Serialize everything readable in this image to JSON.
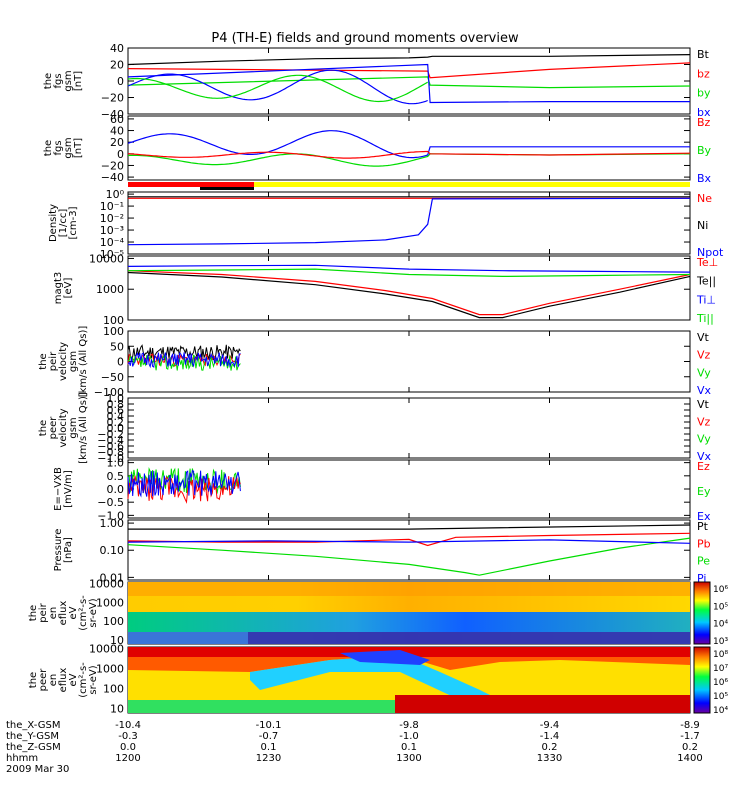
{
  "title": "P4 (TH-E) fields and ground moments overview",
  "time_axis": {
    "rows": [
      {
        "label": "the_X-GSM",
        "values": [
          "-10.4",
          "-10.1",
          "-9.8",
          "-9.4",
          "-8.9"
        ]
      },
      {
        "label": "the_Y-GSM",
        "values": [
          "-0.3",
          "-0.7",
          "-1.0",
          "-1.4",
          "-1.7"
        ]
      },
      {
        "label": "the_Z-GSM",
        "values": [
          "0.0",
          "0.1",
          "0.1",
          "0.2",
          "0.2"
        ]
      },
      {
        "label": "hhmm",
        "values": [
          "1200",
          "1230",
          "1300",
          "1330",
          "1400"
        ]
      }
    ],
    "date": "2009 Mar 30"
  },
  "colors": {
    "black": "#000000",
    "red": "#ff0000",
    "green": "#00dd00",
    "blue": "#0000ff",
    "yellow": "#ffff00"
  },
  "chart_data": [
    {
      "type": "line",
      "id": "fgs_gsm",
      "ylabel_lines": [
        "the",
        "fgs",
        "gsm",
        "[nT]"
      ],
      "ylim": [
        -40,
        40
      ],
      "yticks": [
        -40,
        -20,
        0,
        20,
        40
      ],
      "ytick_labels": [
        "−40",
        "−20",
        "0",
        "20",
        "40"
      ],
      "xlim": [
        0,
        120
      ],
      "series": [
        {
          "name": "Bt",
          "color": "#000000"
        },
        {
          "name": "bz",
          "color": "#ff0000"
        },
        {
          "name": "by",
          "color": "#00dd00"
        },
        {
          "name": "bx",
          "color": "#0000ff"
        }
      ],
      "data": {
        "Bt": {
          "x": [
            0,
            20,
            40,
            60,
            64,
            65,
            90,
            120
          ],
          "y": [
            20,
            24,
            27,
            28,
            29,
            30,
            30,
            32
          ]
        },
        "bz": {
          "x": [
            0,
            64,
            64.5,
            90,
            120
          ],
          "y": [
            15,
            12,
            4,
            14,
            22
          ]
        },
        "by": {
          "x": [
            0,
            64,
            64.5,
            90,
            120
          ],
          "y": [
            -5,
            5,
            -5,
            -8,
            -6
          ]
        },
        "bx": {
          "x": [
            0,
            64,
            64.5,
            90,
            120
          ],
          "y": [
            5,
            20,
            -26,
            -25,
            -25
          ]
        }
      }
    },
    {
      "type": "line",
      "id": "fgs_gsm_dsp",
      "ylabel_lines": [
        "the",
        "fgs",
        "gsm",
        "[nT]"
      ],
      "ylim": [
        -45,
        65
      ],
      "yticks": [
        -40,
        -20,
        0,
        20,
        40,
        60
      ],
      "ytick_labels": [
        "−40",
        "−20",
        "0",
        "20",
        "40",
        "60"
      ],
      "xlim": [
        0,
        120
      ],
      "series": [
        {
          "name": "Bz",
          "color": "#ff0000"
        },
        {
          "name": "By",
          "color": "#00dd00"
        },
        {
          "name": "Bx",
          "color": "#0000ff"
        }
      ]
    },
    {
      "type": "line",
      "id": "density",
      "log": true,
      "ylabel_lines": [
        "Density",
        "[1/cc]",
        "[cm-3]"
      ],
      "ylim": [
        1e-05,
        1.5
      ],
      "yticks": [
        1,
        0.1,
        0.01,
        0.001,
        0.0001,
        1e-05
      ],
      "ytick_labels": [
        "10⁰",
        "10⁻¹",
        "10⁻²",
        "10⁻³",
        "10⁻⁴",
        "10⁻⁵"
      ],
      "xlim": [
        0,
        120
      ],
      "series": [
        {
          "name": "Ne",
          "color": "#ff0000"
        },
        {
          "name": "Ni",
          "color": "#000000"
        },
        {
          "name": "Npot",
          "color": "#0000ff"
        }
      ],
      "data": {
        "Ne": {
          "x": [
            0,
            120
          ],
          "y": [
            0.45,
            0.45
          ]
        },
        "Ni": {
          "x": [
            0,
            120
          ],
          "y": [
            0.6,
            0.6
          ]
        },
        "Npot": {
          "x": [
            0,
            20,
            40,
            55,
            62,
            64,
            65,
            120
          ],
          "y": [
            6e-05,
            7e-05,
            9e-05,
            0.00015,
            0.0004,
            0.003,
            0.4,
            0.45
          ]
        }
      }
    },
    {
      "type": "line",
      "id": "temperature",
      "log": true,
      "ylabel_lines": [
        "magt3",
        "[eV]"
      ],
      "ylim": [
        100,
        12000
      ],
      "yticks": [
        10000,
        1000,
        100
      ],
      "ytick_labels": [
        "10000",
        "1000",
        "100"
      ],
      "xlim": [
        0,
        120
      ],
      "series": [
        {
          "name": "Te⊥",
          "color": "#ff0000"
        },
        {
          "name": "Te||",
          "color": "#000000"
        },
        {
          "name": "Ti⊥",
          "color": "#0000ff"
        },
        {
          "name": "Ti||",
          "color": "#00dd00"
        }
      ],
      "data": {
        "Te⊥": {
          "x": [
            0,
            20,
            40,
            55,
            65,
            75,
            80,
            90,
            105,
            120
          ],
          "y": [
            4000,
            3000,
            1800,
            900,
            500,
            150,
            150,
            350,
            1000,
            3000
          ]
        },
        "Te||": {
          "x": [
            0,
            20,
            40,
            55,
            65,
            75,
            80,
            90,
            105,
            120
          ],
          "y": [
            3500,
            2500,
            1400,
            700,
            400,
            120,
            120,
            280,
            800,
            2600
          ]
        },
        "Ti⊥": {
          "x": [
            0,
            20,
            40,
            60,
            80,
            100,
            120
          ],
          "y": [
            5500,
            5800,
            6000,
            4500,
            4000,
            3800,
            3600
          ]
        },
        "Ti||": {
          "x": [
            0,
            20,
            40,
            60,
            80,
            100,
            120
          ],
          "y": [
            4000,
            4200,
            4500,
            3000,
            2600,
            2800,
            3000
          ]
        }
      }
    },
    {
      "type": "line",
      "id": "peir_velocity",
      "ylabel_lines": [
        "the",
        "peir",
        "velocity",
        "gsm",
        "[km/s (All Qs)]"
      ],
      "ylim": [
        -100,
        100
      ],
      "yticks": [
        -100,
        -50,
        0,
        50,
        100
      ],
      "ytick_labels": [
        "−100",
        "−50",
        "0",
        "50",
        "100"
      ],
      "xlim": [
        0,
        120
      ],
      "series": [
        {
          "name": "Vt",
          "color": "#000000"
        },
        {
          "name": "Vz",
          "color": "#ff0000"
        },
        {
          "name": "Vy",
          "color": "#00dd00"
        },
        {
          "name": "Vx",
          "color": "#0000ff"
        }
      ]
    },
    {
      "type": "line",
      "id": "peer_velocity",
      "ylabel_lines": [
        "the",
        "peer",
        "velocity",
        "gsm",
        "[km/s (All Qs)]"
      ],
      "ylim": [
        -1,
        1
      ],
      "yticks": [
        -1,
        -0.8,
        -0.6,
        -0.4,
        -0.2,
        0,
        0.2,
        0.4,
        0.6,
        0.8,
        1
      ],
      "ytick_labels": [
        "−1.0",
        "−0.8",
        "−0.6",
        "−0.4",
        "−0.2",
        "0.0",
        "0.2",
        "0.4",
        "0.6",
        "0.8",
        "1.0"
      ],
      "xlim": [
        0,
        120
      ],
      "series": [
        {
          "name": "Vt",
          "color": "#000000"
        },
        {
          "name": "Vz",
          "color": "#ff0000"
        },
        {
          "name": "Vy",
          "color": "#00dd00"
        },
        {
          "name": "Vx",
          "color": "#0000ff"
        }
      ]
    },
    {
      "type": "line",
      "id": "efield",
      "ylabel_lines": [
        "E=−VXB",
        "[mV/m]"
      ],
      "ylim": [
        -1.1,
        1.1
      ],
      "yticks": [
        -1,
        -0.5,
        0,
        0.5,
        1
      ],
      "ytick_labels": [
        "−1.0",
        "−0.5",
        "0.0",
        "0.5",
        "1.0"
      ],
      "xlim": [
        0,
        120
      ],
      "series": [
        {
          "name": "Ez",
          "color": "#ff0000"
        },
        {
          "name": "Ey",
          "color": "#00dd00"
        },
        {
          "name": "Ex",
          "color": "#0000ff"
        }
      ]
    },
    {
      "type": "line",
      "id": "pressure",
      "log": true,
      "ylabel_lines": [
        "Pressure",
        "[nPa]"
      ],
      "ylim": [
        0.008,
        1.3
      ],
      "yticks": [
        1,
        0.1,
        0.01
      ],
      "ytick_labels": [
        "1.00",
        "0.10",
        "0.01"
      ],
      "xlim": [
        0,
        120
      ],
      "series": [
        {
          "name": "Pt",
          "color": "#000000"
        },
        {
          "name": "Pb",
          "color": "#ff0000"
        },
        {
          "name": "Pe",
          "color": "#00dd00"
        },
        {
          "name": "Pi",
          "color": "#0000ff"
        }
      ],
      "data": {
        "Pt": {
          "x": [
            0,
            60,
            120
          ],
          "y": [
            0.6,
            0.6,
            0.85
          ]
        },
        "Pb": {
          "x": [
            0,
            20,
            40,
            60,
            64,
            70,
            90,
            120
          ],
          "y": [
            0.22,
            0.2,
            0.2,
            0.25,
            0.15,
            0.3,
            0.35,
            0.42
          ]
        },
        "Pe": {
          "x": [
            0,
            20,
            40,
            60,
            72,
            75,
            90,
            105,
            120
          ],
          "y": [
            0.16,
            0.1,
            0.06,
            0.03,
            0.015,
            0.012,
            0.04,
            0.12,
            0.28
          ]
        },
        "Pi": {
          "x": [
            0,
            30,
            60,
            90,
            120
          ],
          "y": [
            0.2,
            0.22,
            0.2,
            0.24,
            0.18
          ]
        }
      }
    },
    {
      "type": "heatmap",
      "id": "peir_eflux",
      "log": true,
      "ylabel_lines": [
        "the",
        "peir",
        "en",
        "eflux",
        "eV",
        "(cm²-s-",
        "sr-eV)"
      ],
      "ylim": [
        6,
        12000
      ],
      "yticks": [
        10000,
        1000,
        100,
        10
      ],
      "ytick_labels": [
        "10000",
        "1000",
        "100",
        "10"
      ],
      "colorbar": {
        "ticks": [
          "10⁶",
          "10⁵",
          "10⁴",
          "10³"
        ]
      }
    },
    {
      "type": "heatmap",
      "id": "peer_eflux",
      "log": true,
      "ylabel_lines": [
        "the",
        "peer",
        "en",
        "eflux",
        "eV",
        "(cm²-s-",
        "sr-eV)"
      ],
      "ylim": [
        6,
        12000
      ],
      "yticks": [
        10000,
        1000,
        100,
        10
      ],
      "ytick_labels": [
        "10000",
        "1000",
        "100",
        "10"
      ],
      "colorbar": {
        "ticks": [
          "10⁸",
          "10⁷",
          "10⁶",
          "10⁵",
          "10⁴"
        ]
      }
    }
  ]
}
